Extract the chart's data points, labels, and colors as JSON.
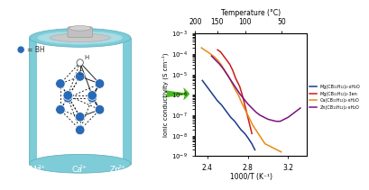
{
  "plot_xlabel": "1000/T (K⁻¹)",
  "plot_ylabel": "Ionic conductivity (S cm⁻¹)",
  "top_xlabel": "Temperature (°C)",
  "xlim": [
    2.28,
    3.38
  ],
  "ylim_log": [
    -9,
    -3
  ],
  "legend_labels": [
    "Mg(CB₁₁H₁₂)₂·xH₂O",
    "Mg(CB₁₁H₁₂)₂·3en",
    "Ca(CB₁₁H₁₂)₂·xH₂O",
    "Zn(CB₁₁H₁₂)₂·xH₂O"
  ],
  "line_colors": [
    "#1a3a8a",
    "#cc1a1a",
    "#e88a10",
    "#7b1080"
  ],
  "bg_color": "#ffffff",
  "battery_color": "#7dccd8",
  "battery_light": "#a8dde6",
  "battery_dark": "#5ab0be",
  "atom_color": "#2a6ab5",
  "arrow_color": "#4ab820",
  "Mg_data_x": [
    2.35,
    2.38,
    2.41,
    2.44,
    2.47,
    2.5,
    2.54,
    2.57,
    2.6,
    2.63,
    2.67,
    2.7,
    2.73,
    2.77,
    2.8,
    2.84,
    2.87
  ],
  "Mg_data_y": [
    -5.3,
    -5.5,
    -5.7,
    -5.9,
    -6.1,
    -6.3,
    -6.5,
    -6.7,
    -6.9,
    -7.1,
    -7.3,
    -7.5,
    -7.7,
    -7.9,
    -8.1,
    -8.4,
    -8.7
  ],
  "MgEn_data_x": [
    2.5,
    2.53,
    2.56,
    2.59,
    2.62,
    2.65,
    2.68,
    2.72,
    2.75,
    2.78,
    2.81,
    2.84
  ],
  "MgEn_data_y": [
    -3.8,
    -3.9,
    -4.1,
    -4.3,
    -4.5,
    -4.8,
    -5.2,
    -5.6,
    -6.1,
    -6.7,
    -7.3,
    -7.9
  ],
  "Ca_data_x": [
    2.34,
    2.37,
    2.4,
    2.43,
    2.47,
    2.5,
    2.54,
    2.57,
    2.61,
    2.64,
    2.67,
    2.71,
    2.74,
    2.78,
    2.81,
    2.85,
    2.89,
    2.93,
    2.97,
    3.01,
    3.05,
    3.09,
    3.13
  ],
  "Ca_data_y": [
    -3.7,
    -3.8,
    -3.9,
    -4.0,
    -4.15,
    -4.3,
    -4.55,
    -4.8,
    -5.1,
    -5.4,
    -5.7,
    -6.05,
    -6.4,
    -6.8,
    -7.1,
    -7.5,
    -7.8,
    -8.1,
    -8.4,
    -8.5,
    -8.6,
    -8.7,
    -8.8
  ],
  "Zn_data_x": [
    2.44,
    2.48,
    2.52,
    2.56,
    2.6,
    2.64,
    2.68,
    2.72,
    2.76,
    2.8,
    2.84,
    2.88,
    2.92,
    2.96,
    3.0,
    3.04,
    3.08,
    3.12,
    3.16,
    3.2,
    3.24,
    3.28,
    3.32
  ],
  "Zn_data_y": [
    -4.1,
    -4.3,
    -4.5,
    -4.75,
    -5.05,
    -5.35,
    -5.65,
    -5.95,
    -6.2,
    -6.45,
    -6.65,
    -6.85,
    -7.0,
    -7.1,
    -7.2,
    -7.25,
    -7.3,
    -7.3,
    -7.2,
    -7.1,
    -6.95,
    -6.8,
    -6.65
  ]
}
